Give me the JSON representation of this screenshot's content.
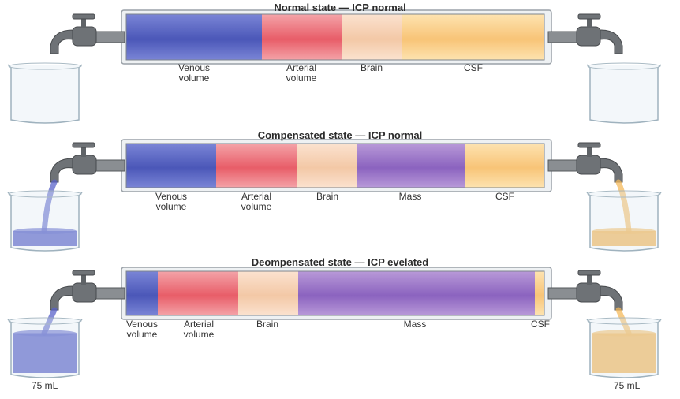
{
  "panels": [
    {
      "title": "Normal state — ICP normal",
      "segments": [
        {
          "key": "venous",
          "label": "Venous\nvolume",
          "color_start": "#7a85d6",
          "color_end": "#4b57b8"
        },
        {
          "key": "arterial",
          "label": "Arterial\nvolume",
          "color_start": "#f4a3a8",
          "color_end": "#e85d68"
        },
        {
          "key": "brain",
          "label": "Brain",
          "color_start": "#fbe2cf",
          "color_end": "#f3c8a6"
        },
        {
          "key": "csf",
          "label": "CSF",
          "color_start": "#fde3b0",
          "color_end": "#f8c477"
        }
      ],
      "left_beaker_fill": 0,
      "right_beaker_fill": 0
    },
    {
      "title": "Compensated state — ICP normal",
      "segments": [
        {
          "key": "venous",
          "label": "Venous\nvolume",
          "color_start": "#7a85d6",
          "color_end": "#4b57b8"
        },
        {
          "key": "arterial",
          "label": "Arterial\nvolume",
          "color_start": "#f4a3a8",
          "color_end": "#e85d68"
        },
        {
          "key": "brain",
          "label": "Brain",
          "color_start": "#fbe2cf",
          "color_end": "#f3c8a6"
        },
        {
          "key": "mass",
          "label": "Mass",
          "color_start": "#b899d8",
          "color_end": "#8b63bf"
        },
        {
          "key": "csf",
          "label": "CSF",
          "color_start": "#fde3b0",
          "color_end": "#f8c477"
        }
      ],
      "left_beaker_fill": 0.3,
      "right_beaker_fill": 0.3
    },
    {
      "title": "Deompensated state — ICP evelated",
      "segments": [
        {
          "key": "venous",
          "label": "Venous\nvolume",
          "color_start": "#7a85d6",
          "color_end": "#4b57b8"
        },
        {
          "key": "arterial",
          "label": "Arterial\nvolume",
          "color_start": "#f4a3a8",
          "color_end": "#e85d68"
        },
        {
          "key": "brain",
          "label": "Brain",
          "color_start": "#fbe2cf",
          "color_end": "#f3c8a6"
        },
        {
          "key": "mass",
          "label": "Mass",
          "color_start": "#b899d8",
          "color_end": "#8b63bf"
        },
        {
          "key": "csf",
          "label": "CSF",
          "color_start": "#fde3b0",
          "color_end": "#f8c477"
        }
      ],
      "left_beaker_fill": 0.75,
      "right_beaker_fill": 0.75,
      "left_volume_label": "75 mL",
      "right_volume_label": "75 mL"
    }
  ],
  "colors": {
    "venous_liquid": "#5a63c9",
    "csf_liquid": "#f4b95c",
    "tube_border": "#9aa1a8",
    "faucet": "#6e7276"
  }
}
